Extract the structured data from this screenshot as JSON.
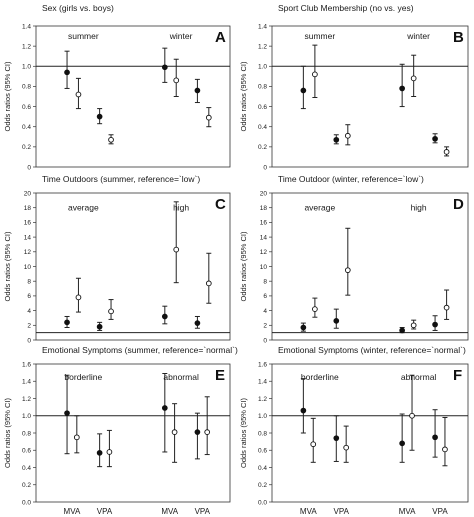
{
  "chart_data": [
    {
      "type": "scatter",
      "letter": "A",
      "title": "Sex (girls vs. boys)",
      "ylabel": "Odds ratios (95% CI)",
      "ylim": [
        0,
        1.4
      ],
      "yticks": [
        "0",
        "0.2",
        "0.4",
        "0.6",
        "0.8",
        "1.0",
        "1.2",
        "1.4"
      ],
      "reference_line": 1.0,
      "group_labels": [
        {
          "text": "summer",
          "at": 1.5,
          "y": 1.3
        },
        {
          "text": "winter",
          "at": 4.5,
          "y": 1.3
        }
      ],
      "categories": [],
      "series": [
        {
          "marker": "filled",
          "x": [
            1,
            4
          ],
          "y": [
            0.94,
            0.99
          ],
          "lower": [
            0.78,
            0.84
          ],
          "upper": [
            1.15,
            1.18
          ]
        },
        {
          "marker": "open",
          "x": [
            1.35,
            4.35
          ],
          "y": [
            0.72,
            0.86
          ],
          "lower": [
            0.58,
            0.7
          ],
          "upper": [
            0.88,
            1.07
          ]
        },
        {
          "marker": "filled",
          "x": [
            2,
            5
          ],
          "y": [
            0.5,
            0.76
          ],
          "lower": [
            0.43,
            0.64
          ],
          "upper": [
            0.58,
            0.87
          ]
        },
        {
          "marker": "open",
          "x": [
            2.35,
            5.35
          ],
          "y": [
            0.27,
            0.49
          ],
          "lower": [
            0.23,
            0.4
          ],
          "upper": [
            0.32,
            0.59
          ]
        }
      ]
    },
    {
      "type": "scatter",
      "letter": "B",
      "title": "Sport Club Membership (no vs. yes)",
      "ylabel": "Odds ratios (95% CI)",
      "ylim": [
        0,
        1.4
      ],
      "yticks": [
        "0",
        "0.2",
        "0.4",
        "0.6",
        "0.8",
        "1.0",
        "1.2",
        "1.4"
      ],
      "reference_line": 1.0,
      "group_labels": [
        {
          "text": "summer",
          "at": 1.5,
          "y": 1.3
        },
        {
          "text": "winter",
          "at": 4.5,
          "y": 1.3
        }
      ],
      "categories": [],
      "series": [
        {
          "marker": "filled",
          "x": [
            1,
            4
          ],
          "y": [
            0.76,
            0.78
          ],
          "lower": [
            0.58,
            0.6
          ],
          "upper": [
            1.0,
            1.02
          ]
        },
        {
          "marker": "open",
          "x": [
            1.35,
            4.35
          ],
          "y": [
            0.92,
            0.88
          ],
          "lower": [
            0.69,
            0.7
          ],
          "upper": [
            1.21,
            1.11
          ]
        },
        {
          "marker": "filled",
          "x": [
            2,
            5
          ],
          "y": [
            0.27,
            0.28
          ],
          "lower": [
            0.23,
            0.24
          ],
          "upper": [
            0.32,
            0.33
          ]
        },
        {
          "marker": "open",
          "x": [
            2.35,
            5.35
          ],
          "y": [
            0.31,
            0.15
          ],
          "lower": [
            0.22,
            0.11
          ],
          "upper": [
            0.42,
            0.2
          ]
        }
      ]
    },
    {
      "type": "scatter",
      "letter": "C",
      "title": "Time Outdoors (summer, reference=`low`)",
      "ylabel": "Odds ratios (95% CI)",
      "ylim": [
        0,
        20
      ],
      "yticks": [
        "0",
        "2",
        "4",
        "6",
        "8",
        "10",
        "12",
        "14",
        "16",
        "18",
        "20"
      ],
      "reference_line": 1.0,
      "group_labels": [
        {
          "text": "average",
          "at": 1.5,
          "y": 18
        },
        {
          "text": "high",
          "at": 4.5,
          "y": 18
        }
      ],
      "categories": [],
      "series": [
        {
          "marker": "filled",
          "x": [
            1,
            4
          ],
          "y": [
            2.4,
            3.2
          ],
          "lower": [
            1.7,
            2.2
          ],
          "upper": [
            3.2,
            4.6
          ]
        },
        {
          "marker": "open",
          "x": [
            1.35,
            4.35
          ],
          "y": [
            5.8,
            12.3
          ],
          "lower": [
            3.8,
            7.8
          ],
          "upper": [
            8.4,
            18.8
          ]
        },
        {
          "marker": "filled",
          "x": [
            2,
            5
          ],
          "y": [
            1.8,
            2.3
          ],
          "lower": [
            1.3,
            1.6
          ],
          "upper": [
            2.4,
            3.2
          ]
        },
        {
          "marker": "open",
          "x": [
            2.35,
            5.35
          ],
          "y": [
            3.9,
            7.7
          ],
          "lower": [
            2.8,
            5.0
          ],
          "upper": [
            5.5,
            11.8
          ]
        }
      ]
    },
    {
      "type": "scatter",
      "letter": "D",
      "title": "Time Outdoor (winter, reference=`low`)",
      "ylabel": "Odds ratios (95% CI)",
      "ylim": [
        0,
        20
      ],
      "yticks": [
        "0",
        "2",
        "4",
        "6",
        "8",
        "10",
        "12",
        "14",
        "16",
        "18",
        "20"
      ],
      "reference_line": 1.0,
      "group_labels": [
        {
          "text": "average",
          "at": 1.5,
          "y": 18
        },
        {
          "text": "high",
          "at": 4.5,
          "y": 18
        }
      ],
      "categories": [],
      "series": [
        {
          "marker": "filled",
          "x": [
            1,
            4
          ],
          "y": [
            1.7,
            1.3
          ],
          "lower": [
            1.2,
            1.0
          ],
          "upper": [
            2.3,
            1.7
          ]
        },
        {
          "marker": "open",
          "x": [
            1.35,
            4.35
          ],
          "y": [
            4.2,
            2.0
          ],
          "lower": [
            3.1,
            1.5
          ],
          "upper": [
            5.7,
            2.7
          ]
        },
        {
          "marker": "filled",
          "x": [
            2,
            5
          ],
          "y": [
            2.6,
            2.1
          ],
          "lower": [
            1.6,
            1.3
          ],
          "upper": [
            4.2,
            3.3
          ]
        },
        {
          "marker": "open",
          "x": [
            2.35,
            5.35
          ],
          "y": [
            9.5,
            4.4
          ],
          "lower": [
            6.1,
            2.8
          ],
          "upper": [
            15.2,
            6.8
          ]
        }
      ]
    },
    {
      "type": "scatter",
      "letter": "E",
      "title": "Emotional Symptoms (summer, reference=`normal`)",
      "ylabel": "Odds ratios (95% CI)",
      "ylim": [
        0,
        1.6
      ],
      "yticks": [
        "0.0",
        "0.2",
        "0.4",
        "0.6",
        "0.8",
        "1.0",
        "1.2",
        "1.4",
        "1.6"
      ],
      "reference_line": 1.0,
      "group_labels": [
        {
          "text": "borderline",
          "at": 1.5,
          "y": 1.45
        },
        {
          "text": "abnormal",
          "at": 4.5,
          "y": 1.45
        }
      ],
      "categories": [
        {
          "text": "MVA",
          "at": 1.15
        },
        {
          "text": "VPA",
          "at": 2.15
        },
        {
          "text": "MVA",
          "at": 4.15
        },
        {
          "text": "VPA",
          "at": 5.15
        }
      ],
      "series": [
        {
          "marker": "filled",
          "x": [
            1,
            4
          ],
          "y": [
            1.03,
            1.09
          ],
          "lower": [
            0.56,
            0.58
          ],
          "upper": [
            1.47,
            1.49
          ]
        },
        {
          "marker": "open",
          "x": [
            1.3,
            4.3
          ],
          "y": [
            0.75,
            0.81
          ],
          "lower": [
            0.57,
            0.46
          ],
          "upper": [
            1.0,
            1.14
          ]
        },
        {
          "marker": "filled",
          "x": [
            2,
            5
          ],
          "y": [
            0.57,
            0.81
          ],
          "lower": [
            0.41,
            0.5
          ],
          "upper": [
            0.79,
            1.03
          ]
        },
        {
          "marker": "open",
          "x": [
            2.3,
            5.3
          ],
          "y": [
            0.58,
            0.81
          ],
          "lower": [
            0.41,
            0.55
          ],
          "upper": [
            0.83,
            1.22
          ]
        }
      ]
    },
    {
      "type": "scatter",
      "letter": "F",
      "title": "Emotional Symptoms (winter, reference=`normal`)",
      "ylabel": "Odds ratios (95% CI)",
      "ylim": [
        0,
        1.6
      ],
      "yticks": [
        "0.0",
        "0.2",
        "0.4",
        "0.6",
        "0.8",
        "1.0",
        "1.2",
        "1.4",
        "1.6"
      ],
      "reference_line": 1.0,
      "group_labels": [
        {
          "text": "borderline",
          "at": 1.5,
          "y": 1.45
        },
        {
          "text": "abnormal",
          "at": 4.5,
          "y": 1.45
        }
      ],
      "categories": [
        {
          "text": "MVA",
          "at": 1.15
        },
        {
          "text": "VPA",
          "at": 2.15
        },
        {
          "text": "MVA",
          "at": 4.15
        },
        {
          "text": "VPA",
          "at": 5.15
        }
      ],
      "series": [
        {
          "marker": "filled",
          "x": [
            1,
            4
          ],
          "y": [
            1.06,
            0.68
          ],
          "lower": [
            0.8,
            0.46
          ],
          "upper": [
            1.43,
            1.02
          ]
        },
        {
          "marker": "open",
          "x": [
            1.3,
            4.3
          ],
          "y": [
            0.67,
            1.0
          ],
          "lower": [
            0.46,
            0.6
          ],
          "upper": [
            0.97,
            1.47
          ]
        },
        {
          "marker": "filled",
          "x": [
            2,
            5
          ],
          "y": [
            0.74,
            0.75
          ],
          "lower": [
            0.47,
            0.52
          ],
          "upper": [
            1.0,
            1.07
          ]
        },
        {
          "marker": "open",
          "x": [
            2.3,
            5.3
          ],
          "y": [
            0.63,
            0.61
          ],
          "lower": [
            0.46,
            0.42
          ],
          "upper": [
            0.88,
            0.98
          ]
        }
      ]
    }
  ]
}
